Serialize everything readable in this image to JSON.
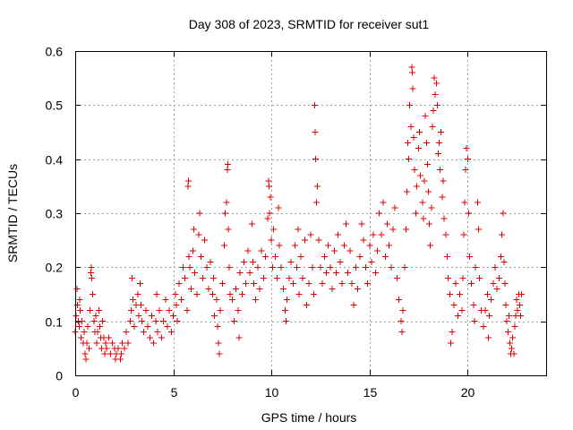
{
  "chart_data": {
    "type": "scatter",
    "title": "Day 308 of 2023, SRMTID for receiver sut1",
    "xlabel": "GPS time / hours",
    "ylabel": "SRMTID / TECUs",
    "xlim": [
      0,
      24
    ],
    "ylim": [
      0,
      0.6
    ],
    "xticks": [
      0,
      5,
      10,
      15,
      20
    ],
    "xtick_labels": [
      "0",
      "5",
      "10",
      "15",
      "20"
    ],
    "yticks": [
      0,
      0.1,
      0.2,
      0.3,
      0.4,
      0.5,
      0.6
    ],
    "ytick_labels": [
      "0",
      "0.1",
      "0.2",
      "0.3",
      "0.4",
      "0.5",
      "0.6"
    ],
    "grid": true,
    "marker": "+",
    "color": "#e00000",
    "series": [
      {
        "name": "sut1",
        "points": [
          [
            0.0,
            0.08
          ],
          [
            0.05,
            0.11
          ],
          [
            0.1,
            0.16
          ],
          [
            0.12,
            0.13
          ],
          [
            0.15,
            0.1
          ],
          [
            0.2,
            0.09
          ],
          [
            0.22,
            0.14
          ],
          [
            0.25,
            0.12
          ],
          [
            0.3,
            0.07
          ],
          [
            0.35,
            0.1
          ],
          [
            0.4,
            0.06
          ],
          [
            0.45,
            0.08
          ],
          [
            0.5,
            0.04
          ],
          [
            0.55,
            0.03
          ],
          [
            0.6,
            0.06
          ],
          [
            0.65,
            0.09
          ],
          [
            0.7,
            0.05
          ],
          [
            0.75,
            0.12
          ],
          [
            0.8,
            0.19
          ],
          [
            0.82,
            0.2
          ],
          [
            0.85,
            0.18
          ],
          [
            0.9,
            0.15
          ],
          [
            0.95,
            0.1
          ],
          [
            1.0,
            0.08
          ],
          [
            1.05,
            0.11
          ],
          [
            1.1,
            0.06
          ],
          [
            1.15,
            0.08
          ],
          [
            1.2,
            0.12
          ],
          [
            1.25,
            0.09
          ],
          [
            1.3,
            0.07
          ],
          [
            1.35,
            0.05
          ],
          [
            1.4,
            0.1
          ],
          [
            1.45,
            0.07
          ],
          [
            1.5,
            0.04
          ],
          [
            1.55,
            0.06
          ],
          [
            1.6,
            0.05
          ],
          [
            1.7,
            0.07
          ],
          [
            1.8,
            0.04
          ],
          [
            1.9,
            0.06
          ],
          [
            2.0,
            0.05
          ],
          [
            2.05,
            0.03
          ],
          [
            2.1,
            0.04
          ],
          [
            2.2,
            0.05
          ],
          [
            2.3,
            0.03
          ],
          [
            2.35,
            0.04
          ],
          [
            2.4,
            0.06
          ],
          [
            2.5,
            0.05
          ],
          [
            2.6,
            0.08
          ],
          [
            2.7,
            0.06
          ],
          [
            2.8,
            0.1
          ],
          [
            2.85,
            0.12
          ],
          [
            2.9,
            0.18
          ],
          [
            2.95,
            0.14
          ],
          [
            3.0,
            0.09
          ],
          [
            3.1,
            0.13
          ],
          [
            3.2,
            0.15
          ],
          [
            3.25,
            0.11
          ],
          [
            3.3,
            0.17
          ],
          [
            3.35,
            0.13
          ],
          [
            3.4,
            0.1
          ],
          [
            3.5,
            0.08
          ],
          [
            3.6,
            0.12
          ],
          [
            3.7,
            0.09
          ],
          [
            3.8,
            0.07
          ],
          [
            3.9,
            0.11
          ],
          [
            4.0,
            0.06
          ],
          [
            4.1,
            0.1
          ],
          [
            4.15,
            0.15
          ],
          [
            4.2,
            0.08
          ],
          [
            4.3,
            0.12
          ],
          [
            4.4,
            0.07
          ],
          [
            4.5,
            0.1
          ],
          [
            4.6,
            0.14
          ],
          [
            4.7,
            0.09
          ],
          [
            4.8,
            0.12
          ],
          [
            4.9,
            0.08
          ],
          [
            5.0,
            0.11
          ],
          [
            5.1,
            0.15
          ],
          [
            5.15,
            0.13
          ],
          [
            5.2,
            0.1
          ],
          [
            5.3,
            0.17
          ],
          [
            5.4,
            0.14
          ],
          [
            5.5,
            0.2
          ],
          [
            5.6,
            0.18
          ],
          [
            5.7,
            0.12
          ],
          [
            5.75,
            0.35
          ],
          [
            5.78,
            0.36
          ],
          [
            5.8,
            0.22
          ],
          [
            5.85,
            0.2
          ],
          [
            5.9,
            0.16
          ],
          [
            6.0,
            0.23
          ],
          [
            6.05,
            0.27
          ],
          [
            6.1,
            0.19
          ],
          [
            6.2,
            0.15
          ],
          [
            6.3,
            0.26
          ],
          [
            6.35,
            0.3
          ],
          [
            6.4,
            0.22
          ],
          [
            6.5,
            0.18
          ],
          [
            6.6,
            0.25
          ],
          [
            6.7,
            0.2
          ],
          [
            6.8,
            0.16
          ],
          [
            6.9,
            0.21
          ],
          [
            7.0,
            0.15
          ],
          [
            7.05,
            0.18
          ],
          [
            7.1,
            0.11
          ],
          [
            7.2,
            0.14
          ],
          [
            7.25,
            0.09
          ],
          [
            7.3,
            0.06
          ],
          [
            7.35,
            0.04
          ],
          [
            7.4,
            0.12
          ],
          [
            7.5,
            0.17
          ],
          [
            7.6,
            0.24
          ],
          [
            7.65,
            0.3
          ],
          [
            7.7,
            0.32
          ],
          [
            7.75,
            0.38
          ],
          [
            7.78,
            0.39
          ],
          [
            7.8,
            0.27
          ],
          [
            7.85,
            0.2
          ],
          [
            7.9,
            0.15
          ],
          [
            8.0,
            0.14
          ],
          [
            8.1,
            0.1
          ],
          [
            8.2,
            0.16
          ],
          [
            8.3,
            0.12
          ],
          [
            8.35,
            0.07
          ],
          [
            8.4,
            0.19
          ],
          [
            8.5,
            0.15
          ],
          [
            8.6,
            0.21
          ],
          [
            8.7,
            0.17
          ],
          [
            8.8,
            0.23
          ],
          [
            8.9,
            0.19
          ],
          [
            9.0,
            0.28
          ],
          [
            9.05,
            0.21
          ],
          [
            9.1,
            0.17
          ],
          [
            9.2,
            0.14
          ],
          [
            9.3,
            0.2
          ],
          [
            9.4,
            0.16
          ],
          [
            9.5,
            0.23
          ],
          [
            9.6,
            0.18
          ],
          [
            9.7,
            0.22
          ],
          [
            9.8,
            0.29
          ],
          [
            9.85,
            0.36
          ],
          [
            9.88,
            0.35
          ],
          [
            9.9,
            0.3
          ],
          [
            9.95,
            0.33
          ],
          [
            10.0,
            0.25
          ],
          [
            10.05,
            0.2
          ],
          [
            10.1,
            0.27
          ],
          [
            10.2,
            0.22
          ],
          [
            10.3,
            0.18
          ],
          [
            10.35,
            0.31
          ],
          [
            10.4,
            0.24
          ],
          [
            10.5,
            0.2
          ],
          [
            10.6,
            0.16
          ],
          [
            10.7,
            0.12
          ],
          [
            10.75,
            0.1
          ],
          [
            10.8,
            0.14
          ],
          [
            10.9,
            0.18
          ],
          [
            11.0,
            0.21
          ],
          [
            11.1,
            0.17
          ],
          [
            11.2,
            0.24
          ],
          [
            11.3,
            0.2
          ],
          [
            11.35,
            0.27
          ],
          [
            11.4,
            0.15
          ],
          [
            11.5,
            0.22
          ],
          [
            11.6,
            0.18
          ],
          [
            11.7,
            0.25
          ],
          [
            11.8,
            0.13
          ],
          [
            11.9,
            0.17
          ],
          [
            12.0,
            0.26
          ],
          [
            12.1,
            0.2
          ],
          [
            12.15,
            0.15
          ],
          [
            12.2,
            0.5
          ],
          [
            12.22,
            0.45
          ],
          [
            12.25,
            0.4
          ],
          [
            12.3,
            0.32
          ],
          [
            12.35,
            0.35
          ],
          [
            12.4,
            0.25
          ],
          [
            12.5,
            0.2
          ],
          [
            12.6,
            0.17
          ],
          [
            12.7,
            0.22
          ],
          [
            12.8,
            0.19
          ],
          [
            12.9,
            0.24
          ],
          [
            13.0,
            0.2
          ],
          [
            13.1,
            0.16
          ],
          [
            13.2,
            0.23
          ],
          [
            13.3,
            0.19
          ],
          [
            13.4,
            0.26
          ],
          [
            13.5,
            0.21
          ],
          [
            13.6,
            0.17
          ],
          [
            13.7,
            0.24
          ],
          [
            13.8,
            0.28
          ],
          [
            13.9,
            0.19
          ],
          [
            14.0,
            0.23
          ],
          [
            14.1,
            0.17
          ],
          [
            14.2,
            0.13
          ],
          [
            14.3,
            0.2
          ],
          [
            14.4,
            0.16
          ],
          [
            14.5,
            0.22
          ],
          [
            14.6,
            0.28
          ],
          [
            14.7,
            0.25
          ],
          [
            14.8,
            0.2
          ],
          [
            14.9,
            0.17
          ],
          [
            15.0,
            0.24
          ],
          [
            15.1,
            0.21
          ],
          [
            15.2,
            0.26
          ],
          [
            15.3,
            0.19
          ],
          [
            15.4,
            0.23
          ],
          [
            15.5,
            0.3
          ],
          [
            15.6,
            0.26
          ],
          [
            15.7,
            0.32
          ],
          [
            15.8,
            0.22
          ],
          [
            15.9,
            0.28
          ],
          [
            16.0,
            0.24
          ],
          [
            16.1,
            0.2
          ],
          [
            16.2,
            0.27
          ],
          [
            16.3,
            0.31
          ],
          [
            16.4,
            0.18
          ],
          [
            16.5,
            0.14
          ],
          [
            16.6,
            0.1
          ],
          [
            16.65,
            0.08
          ],
          [
            16.7,
            0.12
          ],
          [
            16.8,
            0.2
          ],
          [
            16.85,
            0.27
          ],
          [
            16.9,
            0.34
          ],
          [
            16.95,
            0.43
          ],
          [
            17.0,
            0.4
          ],
          [
            17.05,
            0.5
          ],
          [
            17.1,
            0.46
          ],
          [
            17.15,
            0.57
          ],
          [
            17.18,
            0.56
          ],
          [
            17.2,
            0.53
          ],
          [
            17.25,
            0.44
          ],
          [
            17.3,
            0.38
          ],
          [
            17.35,
            0.3
          ],
          [
            17.4,
            0.35
          ],
          [
            17.5,
            0.42
          ],
          [
            17.55,
            0.45
          ],
          [
            17.6,
            0.37
          ],
          [
            17.7,
            0.32
          ],
          [
            17.75,
            0.29
          ],
          [
            17.8,
            0.36
          ],
          [
            17.85,
            0.48
          ],
          [
            17.9,
            0.43
          ],
          [
            17.95,
            0.39
          ],
          [
            18.0,
            0.34
          ],
          [
            18.05,
            0.28
          ],
          [
            18.1,
            0.24
          ],
          [
            18.15,
            0.31
          ],
          [
            18.2,
            0.46
          ],
          [
            18.25,
            0.49
          ],
          [
            18.3,
            0.55
          ],
          [
            18.35,
            0.52
          ],
          [
            18.4,
            0.54
          ],
          [
            18.45,
            0.5
          ],
          [
            18.5,
            0.41
          ],
          [
            18.55,
            0.43
          ],
          [
            18.6,
            0.38
          ],
          [
            18.65,
            0.45
          ],
          [
            18.7,
            0.33
          ],
          [
            18.75,
            0.36
          ],
          [
            18.8,
            0.29
          ],
          [
            18.9,
            0.26
          ],
          [
            18.95,
            0.22
          ],
          [
            19.0,
            0.18
          ],
          [
            19.1,
            0.15
          ],
          [
            19.15,
            0.06
          ],
          [
            19.2,
            0.08
          ],
          [
            19.3,
            0.13
          ],
          [
            19.4,
            0.17
          ],
          [
            19.5,
            0.11
          ],
          [
            19.6,
            0.15
          ],
          [
            19.7,
            0.12
          ],
          [
            19.75,
            0.18
          ],
          [
            19.8,
            0.26
          ],
          [
            19.85,
            0.32
          ],
          [
            19.9,
            0.38
          ],
          [
            19.95,
            0.42
          ],
          [
            20.0,
            0.4
          ],
          [
            20.05,
            0.3
          ],
          [
            20.1,
            0.22
          ],
          [
            20.2,
            0.17
          ],
          [
            20.3,
            0.13
          ],
          [
            20.35,
            0.1
          ],
          [
            20.4,
            0.2
          ],
          [
            20.5,
            0.32
          ],
          [
            20.55,
            0.27
          ],
          [
            20.6,
            0.18
          ],
          [
            20.7,
            0.12
          ],
          [
            20.8,
            0.09
          ],
          [
            20.9,
            0.12
          ],
          [
            21.0,
            0.15
          ],
          [
            21.05,
            0.07
          ],
          [
            21.1,
            0.11
          ],
          [
            21.2,
            0.14
          ],
          [
            21.3,
            0.17
          ],
          [
            21.4,
            0.2
          ],
          [
            21.5,
            0.16
          ],
          [
            21.6,
            0.18
          ],
          [
            21.7,
            0.22
          ],
          [
            21.75,
            0.26
          ],
          [
            21.8,
            0.3
          ],
          [
            21.85,
            0.21
          ],
          [
            21.9,
            0.17
          ],
          [
            21.95,
            0.13
          ],
          [
            22.0,
            0.1
          ],
          [
            22.05,
            0.08
          ],
          [
            22.1,
            0.11
          ],
          [
            22.15,
            0.06
          ],
          [
            22.2,
            0.04
          ],
          [
            22.25,
            0.05
          ],
          [
            22.3,
            0.07
          ],
          [
            22.35,
            0.04
          ],
          [
            22.4,
            0.09
          ],
          [
            22.45,
            0.11
          ],
          [
            22.5,
            0.14
          ],
          [
            22.55,
            0.12
          ],
          [
            22.6,
            0.15
          ],
          [
            22.65,
            0.13
          ],
          [
            22.7,
            0.11
          ],
          [
            22.75,
            0.15
          ]
        ]
      }
    ]
  }
}
